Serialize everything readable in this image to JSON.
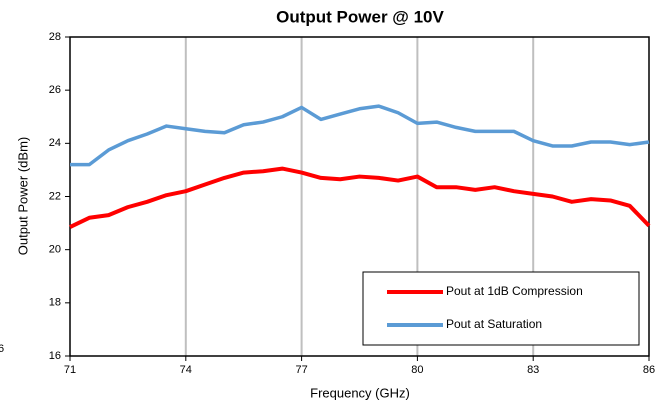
{
  "chart_data": {
    "type": "line",
    "title": "Output Power @ 10V",
    "x_label": "Frequency (GHz)",
    "y_label": "Output Power (dBm)",
    "edge_label": "6",
    "x": [
      71,
      71.5,
      72,
      72.5,
      73,
      73.5,
      74,
      74.5,
      75,
      75.5,
      76,
      76.5,
      77,
      77.5,
      78,
      78.5,
      79,
      79.5,
      80,
      80.5,
      81,
      81.5,
      82,
      82.5,
      83,
      83.5,
      84,
      84.5,
      85,
      85.5,
      86
    ],
    "series": [
      {
        "name": "Pout at 1dB Compression",
        "color": "#ff0000",
        "values": [
          20.85,
          21.2,
          21.3,
          21.6,
          21.8,
          22.05,
          22.2,
          22.45,
          22.7,
          22.9,
          22.95,
          23.05,
          22.9,
          22.7,
          22.65,
          22.75,
          22.7,
          22.6,
          22.75,
          22.35,
          22.35,
          22.25,
          22.35,
          22.2,
          22.1,
          22.0,
          21.8,
          21.9,
          21.85,
          21.65,
          20.9
        ]
      },
      {
        "name": "Pout at Saturation",
        "color": "#5b9bd5",
        "values": [
          23.2,
          23.2,
          23.75,
          24.1,
          24.35,
          24.65,
          24.55,
          24.45,
          24.4,
          24.7,
          24.8,
          25.0,
          25.35,
          24.9,
          25.1,
          25.3,
          25.4,
          25.15,
          24.75,
          24.8,
          24.6,
          24.45,
          24.45,
          24.45,
          24.1,
          23.9,
          23.9,
          24.05,
          24.05,
          23.95,
          24.05
        ]
      }
    ],
    "xlim": [
      71,
      86
    ],
    "xticks": [
      71,
      74,
      77,
      80,
      83,
      86
    ],
    "ylim": [
      16,
      28
    ],
    "yticks": [
      16,
      18,
      20,
      22,
      24,
      26,
      28
    ],
    "grid": "x",
    "legend": "lower right"
  }
}
